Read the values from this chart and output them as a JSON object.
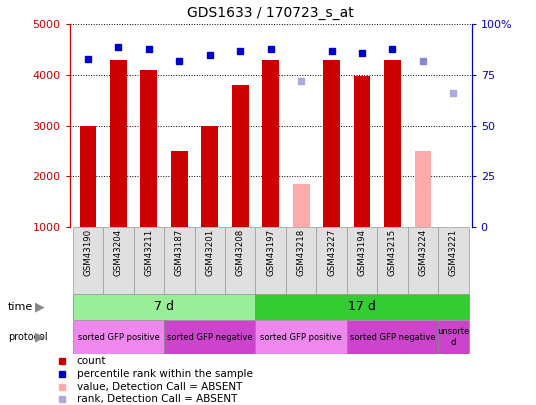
{
  "title": "GDS1633 / 170723_s_at",
  "samples": [
    "GSM43190",
    "GSM43204",
    "GSM43211",
    "GSM43187",
    "GSM43201",
    "GSM43208",
    "GSM43197",
    "GSM43218",
    "GSM43227",
    "GSM43194",
    "GSM43215",
    "GSM43224",
    "GSM43221"
  ],
  "bar_values": [
    3000,
    4300,
    4100,
    2500,
    3000,
    3800,
    4300,
    1850,
    4300,
    3980,
    4300,
    2500,
    null
  ],
  "bar_colors": [
    "#cc0000",
    "#cc0000",
    "#cc0000",
    "#cc0000",
    "#cc0000",
    "#cc0000",
    "#cc0000",
    "#ffaaaa",
    "#cc0000",
    "#cc0000",
    "#cc0000",
    "#ffaaaa",
    null
  ],
  "rank_values": [
    83,
    89,
    88,
    82,
    85,
    87,
    88,
    72,
    87,
    86,
    88,
    82,
    66
  ],
  "rank_colors": [
    "#0000cc",
    "#0000cc",
    "#0000cc",
    "#0000cc",
    "#0000cc",
    "#0000cc",
    "#0000cc",
    "#aaaadd",
    "#0000cc",
    "#0000cc",
    "#0000cc",
    "#8888cc",
    "#aaaadd"
  ],
  "ylim_left": [
    1000,
    5000
  ],
  "ylim_right": [
    0,
    100
  ],
  "yticks_left": [
    1000,
    2000,
    3000,
    4000,
    5000
  ],
  "yticks_right": [
    0,
    25,
    50,
    75,
    100
  ],
  "yticklabels_right": [
    "0",
    "25",
    "50",
    "75",
    "100%"
  ],
  "time_groups": [
    {
      "label": "7 d",
      "start": 0,
      "end": 6,
      "color": "#99ee99"
    },
    {
      "label": "17 d",
      "start": 6,
      "end": 13,
      "color": "#33cc33"
    }
  ],
  "protocol_groups": [
    {
      "label": "sorted GFP positive",
      "start": 0,
      "end": 3,
      "color": "#ee88ee"
    },
    {
      "label": "sorted GFP negative",
      "start": 3,
      "end": 6,
      "color": "#cc44cc"
    },
    {
      "label": "sorted GFP positive",
      "start": 6,
      "end": 9,
      "color": "#ee88ee"
    },
    {
      "label": "sorted GFP negative",
      "start": 9,
      "end": 12,
      "color": "#cc44cc"
    },
    {
      "label": "unsorte\nd",
      "start": 12,
      "end": 13,
      "color": "#cc44cc"
    }
  ],
  "legend_items": [
    {
      "label": "count",
      "color": "#cc0000"
    },
    {
      "label": "percentile rank within the sample",
      "color": "#0000cc"
    },
    {
      "label": "value, Detection Call = ABSENT",
      "color": "#ffaaaa"
    },
    {
      "label": "rank, Detection Call = ABSENT",
      "color": "#aaaadd"
    }
  ],
  "bg_color": "#ffffff",
  "plot_bg_color": "#ffffff",
  "label_color_left": "#cc0000",
  "label_color_right": "#0000cc",
  "bar_width": 0.55,
  "fig_width": 5.36,
  "fig_height": 4.05,
  "fig_dpi": 100
}
